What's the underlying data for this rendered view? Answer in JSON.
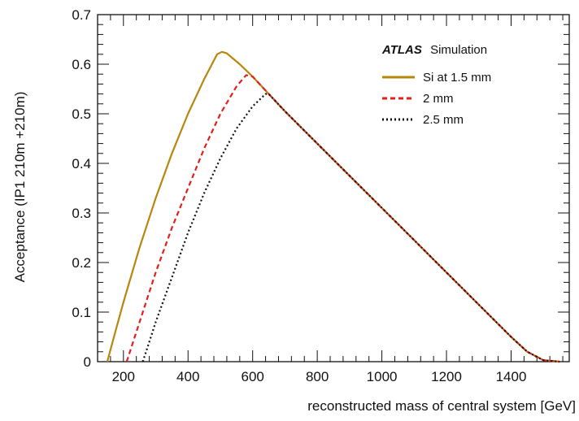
{
  "chart_data": {
    "type": "line",
    "xlabel": "reconstructed mass of central system [GeV]",
    "ylabel": "Acceptance (IP1 210m +210m)",
    "xlim": [
      120,
      1580
    ],
    "ylim": [
      0,
      0.7
    ],
    "xticks": [
      200,
      400,
      600,
      800,
      1000,
      1200,
      1400
    ],
    "yticks": [
      0,
      0.1,
      0.2,
      0.3,
      0.4,
      0.5,
      0.6,
      0.7
    ],
    "grid": false,
    "legend": {
      "placement": "top-right",
      "header_bold": "ATLAS",
      "header_rest": "Simulation"
    },
    "series": [
      {
        "name": "Si at 1.5 mm",
        "color": "#b8860b",
        "style": "solid",
        "points": [
          [
            150,
            0
          ],
          [
            175,
            0.06
          ],
          [
            200,
            0.12
          ],
          [
            250,
            0.23
          ],
          [
            300,
            0.33
          ],
          [
            350,
            0.42
          ],
          [
            400,
            0.5
          ],
          [
            450,
            0.57
          ],
          [
            490,
            0.62
          ],
          [
            505,
            0.625
          ],
          [
            520,
            0.622
          ],
          [
            560,
            0.6
          ],
          [
            600,
            0.575
          ],
          [
            650,
            0.54
          ],
          [
            700,
            0.505
          ],
          [
            800,
            0.44
          ],
          [
            900,
            0.375
          ],
          [
            1000,
            0.31
          ],
          [
            1100,
            0.245
          ],
          [
            1200,
            0.18
          ],
          [
            1300,
            0.115
          ],
          [
            1400,
            0.05
          ],
          [
            1450,
            0.02
          ],
          [
            1500,
            0.003
          ],
          [
            1550,
            0
          ]
        ]
      },
      {
        "name": "2 mm",
        "color": "#e0201c",
        "style": "dashed",
        "points": [
          [
            210,
            0
          ],
          [
            240,
            0.06
          ],
          [
            270,
            0.12
          ],
          [
            300,
            0.18
          ],
          [
            350,
            0.27
          ],
          [
            400,
            0.35
          ],
          [
            450,
            0.43
          ],
          [
            500,
            0.5
          ],
          [
            550,
            0.555
          ],
          [
            580,
            0.578
          ],
          [
            600,
            0.575
          ],
          [
            650,
            0.54
          ],
          [
            700,
            0.505
          ],
          [
            800,
            0.44
          ],
          [
            900,
            0.375
          ],
          [
            1000,
            0.31
          ],
          [
            1100,
            0.245
          ],
          [
            1200,
            0.18
          ],
          [
            1300,
            0.115
          ],
          [
            1400,
            0.05
          ],
          [
            1450,
            0.02
          ],
          [
            1500,
            0.003
          ],
          [
            1550,
            0
          ]
        ]
      },
      {
        "name": "2.5 mm",
        "color": "#111111",
        "style": "dotted",
        "points": [
          [
            260,
            0
          ],
          [
            280,
            0.04
          ],
          [
            300,
            0.08
          ],
          [
            350,
            0.17
          ],
          [
            400,
            0.26
          ],
          [
            450,
            0.34
          ],
          [
            500,
            0.41
          ],
          [
            550,
            0.47
          ],
          [
            600,
            0.515
          ],
          [
            640,
            0.54
          ],
          [
            650,
            0.54
          ],
          [
            700,
            0.505
          ],
          [
            800,
            0.44
          ],
          [
            900,
            0.375
          ],
          [
            1000,
            0.31
          ],
          [
            1100,
            0.245
          ],
          [
            1200,
            0.18
          ],
          [
            1300,
            0.115
          ],
          [
            1400,
            0.05
          ],
          [
            1450,
            0.02
          ],
          [
            1500,
            0.003
          ],
          [
            1550,
            0
          ]
        ]
      }
    ]
  }
}
